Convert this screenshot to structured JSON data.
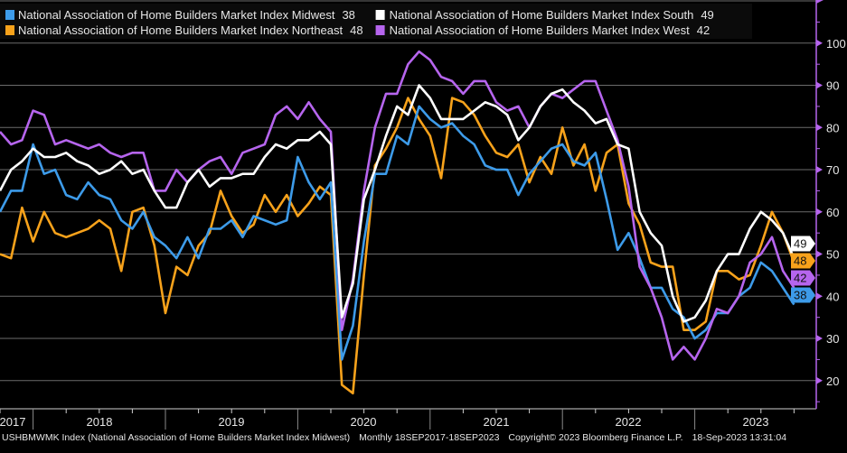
{
  "chart_data": {
    "type": "line",
    "frequency": "Monthly",
    "x_start": "2017-09",
    "x_end": "2023-09",
    "x_tick_labels": [
      "2017",
      "2018",
      "2019",
      "2020",
      "2021",
      "2022",
      "2023"
    ],
    "ylim": [
      20,
      100
    ],
    "y_ticks": [
      20,
      30,
      40,
      50,
      60,
      70,
      80,
      90,
      100
    ],
    "y_axis_side": "right",
    "grid": true,
    "legend_placement": "top-left",
    "series": [
      {
        "key": "midwest",
        "name": "National Association of Home Builders Market Index Midwest",
        "last": "38",
        "color": "#3d9be9",
        "values": [
          60,
          65,
          65,
          76,
          69,
          70,
          64,
          63,
          67,
          64,
          63,
          58,
          56,
          60,
          54,
          52,
          49,
          54,
          49,
          56,
          56,
          58,
          54,
          59,
          58,
          57,
          58,
          73,
          67,
          63,
          67,
          25,
          33,
          53,
          69,
          69,
          78,
          76,
          85,
          82,
          80,
          81,
          78,
          76,
          71,
          70,
          70,
          64,
          69,
          72,
          75,
          76,
          72,
          71,
          74,
          63,
          51,
          55,
          49,
          42,
          42,
          37,
          35,
          30,
          32,
          36,
          36,
          40,
          42,
          48,
          46,
          42,
          38
        ]
      },
      {
        "key": "northeast",
        "name": "National Association of Home Builders Market Index Northeast",
        "last": "48",
        "color": "#f7a21b",
        "values": [
          50,
          49,
          61,
          53,
          60,
          55,
          54,
          55,
          56,
          58,
          56,
          46,
          60,
          61,
          52,
          36,
          47,
          45,
          52,
          55,
          65,
          59,
          55,
          57,
          64,
          60,
          64,
          59,
          62,
          66,
          64,
          19,
          17,
          45,
          71,
          75,
          80,
          87,
          82,
          78,
          68,
          87,
          86,
          83,
          78,
          74,
          73,
          76,
          67,
          73,
          69,
          80,
          71,
          76,
          65,
          74,
          76,
          62,
          57,
          48,
          47,
          47,
          32,
          32,
          34,
          46,
          46,
          44,
          45,
          52,
          60,
          55,
          48
        ]
      },
      {
        "key": "south",
        "name": "National Association of Home Builders Market Index South",
        "last": "49",
        "color": "#ffffff",
        "values": [
          65,
          70,
          72,
          75,
          73,
          73,
          74,
          72,
          71,
          69,
          70,
          72,
          69,
          70,
          65,
          61,
          61,
          67,
          70,
          66,
          68,
          68,
          69,
          69,
          73,
          76,
          75,
          77,
          77,
          79,
          76,
          35,
          43,
          63,
          70,
          78,
          85,
          83,
          90,
          87,
          82,
          82,
          82,
          84,
          86,
          85,
          83,
          77,
          80,
          85,
          88,
          89,
          86,
          84,
          81,
          82,
          76,
          75,
          60,
          55,
          52,
          40,
          34,
          35,
          39,
          46,
          50,
          50,
          56,
          60,
          58,
          55,
          49
        ]
      },
      {
        "key": "west",
        "name": "National Association of Home Builders Market Index West",
        "last": "42",
        "color": "#b665ee",
        "values": [
          79,
          76,
          77,
          84,
          83,
          76,
          77,
          76,
          75,
          76,
          74,
          73,
          74,
          74,
          65,
          65,
          70,
          67,
          70,
          72,
          73,
          69,
          74,
          75,
          76,
          83,
          85,
          82,
          86,
          82,
          79,
          32,
          44,
          65,
          80,
          88,
          88,
          95,
          98,
          96,
          92,
          91,
          88,
          91,
          91,
          86,
          84,
          85,
          80,
          85,
          88,
          87,
          89,
          91,
          91,
          84,
          77,
          66,
          47,
          42,
          35,
          25,
          28,
          25,
          30,
          37,
          36,
          40,
          48,
          50,
          54,
          46,
          42
        ]
      }
    ]
  },
  "y_tick_labels": [
    "20",
    "30",
    "40",
    "50",
    "60",
    "70",
    "80",
    "90",
    "100"
  ],
  "footer": {
    "security": "USHBMWMK Index (National Association of Home Builders Market Index Midwest)",
    "period": "Monthly 18SEP2017-18SEP2023",
    "copyright": "Copyright© 2023 Bloomberg Finance L.P.",
    "timestamp": "18-Sep-2023 13:31:04"
  },
  "colors": {
    "axis": "#b665ee",
    "grid": "#6b6b6b",
    "background": "#000000"
  }
}
